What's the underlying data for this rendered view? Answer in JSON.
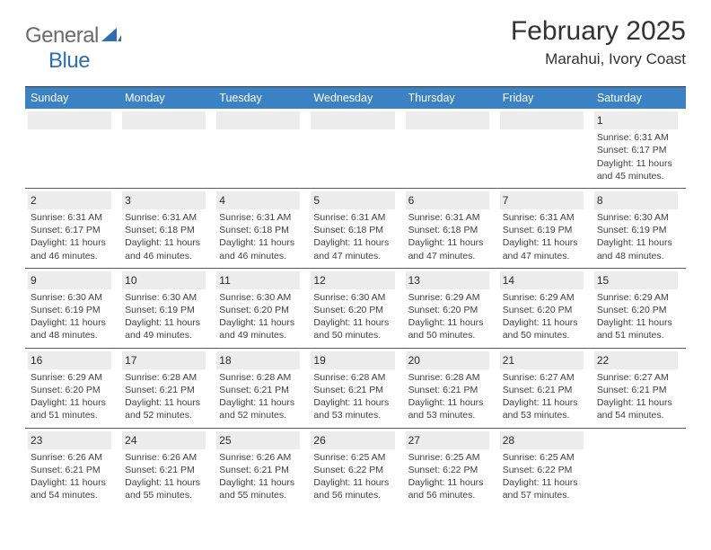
{
  "logo": {
    "general": "General",
    "blue": "Blue"
  },
  "header": {
    "month_title": "February 2025",
    "location": "Marahui, Ivory Coast"
  },
  "colors": {
    "header_row_bg": "#3a82c4",
    "header_row_text": "#ffffff",
    "daynum_bg": "#ececec",
    "cell_border": "#5a5a5a",
    "page_bg": "#ffffff"
  },
  "weekdays": [
    "Sunday",
    "Monday",
    "Tuesday",
    "Wednesday",
    "Thursday",
    "Friday",
    "Saturday"
  ],
  "label": {
    "sunrise": "Sunrise:",
    "sunset": "Sunset:",
    "daylight": "Daylight:"
  },
  "weeks": [
    [
      null,
      null,
      null,
      null,
      null,
      null,
      {
        "day": "1",
        "sunrise": "6:31 AM",
        "sunset": "6:17 PM",
        "daylight": "11 hours and 45 minutes."
      }
    ],
    [
      {
        "day": "2",
        "sunrise": "6:31 AM",
        "sunset": "6:17 PM",
        "daylight": "11 hours and 46 minutes."
      },
      {
        "day": "3",
        "sunrise": "6:31 AM",
        "sunset": "6:18 PM",
        "daylight": "11 hours and 46 minutes."
      },
      {
        "day": "4",
        "sunrise": "6:31 AM",
        "sunset": "6:18 PM",
        "daylight": "11 hours and 46 minutes."
      },
      {
        "day": "5",
        "sunrise": "6:31 AM",
        "sunset": "6:18 PM",
        "daylight": "11 hours and 47 minutes."
      },
      {
        "day": "6",
        "sunrise": "6:31 AM",
        "sunset": "6:18 PM",
        "daylight": "11 hours and 47 minutes."
      },
      {
        "day": "7",
        "sunrise": "6:31 AM",
        "sunset": "6:19 PM",
        "daylight": "11 hours and 47 minutes."
      },
      {
        "day": "8",
        "sunrise": "6:30 AM",
        "sunset": "6:19 PM",
        "daylight": "11 hours and 48 minutes."
      }
    ],
    [
      {
        "day": "9",
        "sunrise": "6:30 AM",
        "sunset": "6:19 PM",
        "daylight": "11 hours and 48 minutes."
      },
      {
        "day": "10",
        "sunrise": "6:30 AM",
        "sunset": "6:19 PM",
        "daylight": "11 hours and 49 minutes."
      },
      {
        "day": "11",
        "sunrise": "6:30 AM",
        "sunset": "6:20 PM",
        "daylight": "11 hours and 49 minutes."
      },
      {
        "day": "12",
        "sunrise": "6:30 AM",
        "sunset": "6:20 PM",
        "daylight": "11 hours and 50 minutes."
      },
      {
        "day": "13",
        "sunrise": "6:29 AM",
        "sunset": "6:20 PM",
        "daylight": "11 hours and 50 minutes."
      },
      {
        "day": "14",
        "sunrise": "6:29 AM",
        "sunset": "6:20 PM",
        "daylight": "11 hours and 50 minutes."
      },
      {
        "day": "15",
        "sunrise": "6:29 AM",
        "sunset": "6:20 PM",
        "daylight": "11 hours and 51 minutes."
      }
    ],
    [
      {
        "day": "16",
        "sunrise": "6:29 AM",
        "sunset": "6:20 PM",
        "daylight": "11 hours and 51 minutes."
      },
      {
        "day": "17",
        "sunrise": "6:28 AM",
        "sunset": "6:21 PM",
        "daylight": "11 hours and 52 minutes."
      },
      {
        "day": "18",
        "sunrise": "6:28 AM",
        "sunset": "6:21 PM",
        "daylight": "11 hours and 52 minutes."
      },
      {
        "day": "19",
        "sunrise": "6:28 AM",
        "sunset": "6:21 PM",
        "daylight": "11 hours and 53 minutes."
      },
      {
        "day": "20",
        "sunrise": "6:28 AM",
        "sunset": "6:21 PM",
        "daylight": "11 hours and 53 minutes."
      },
      {
        "day": "21",
        "sunrise": "6:27 AM",
        "sunset": "6:21 PM",
        "daylight": "11 hours and 53 minutes."
      },
      {
        "day": "22",
        "sunrise": "6:27 AM",
        "sunset": "6:21 PM",
        "daylight": "11 hours and 54 minutes."
      }
    ],
    [
      {
        "day": "23",
        "sunrise": "6:26 AM",
        "sunset": "6:21 PM",
        "daylight": "11 hours and 54 minutes."
      },
      {
        "day": "24",
        "sunrise": "6:26 AM",
        "sunset": "6:21 PM",
        "daylight": "11 hours and 55 minutes."
      },
      {
        "day": "25",
        "sunrise": "6:26 AM",
        "sunset": "6:21 PM",
        "daylight": "11 hours and 55 minutes."
      },
      {
        "day": "26",
        "sunrise": "6:25 AM",
        "sunset": "6:22 PM",
        "daylight": "11 hours and 56 minutes."
      },
      {
        "day": "27",
        "sunrise": "6:25 AM",
        "sunset": "6:22 PM",
        "daylight": "11 hours and 56 minutes."
      },
      {
        "day": "28",
        "sunrise": "6:25 AM",
        "sunset": "6:22 PM",
        "daylight": "11 hours and 57 minutes."
      },
      null
    ]
  ]
}
